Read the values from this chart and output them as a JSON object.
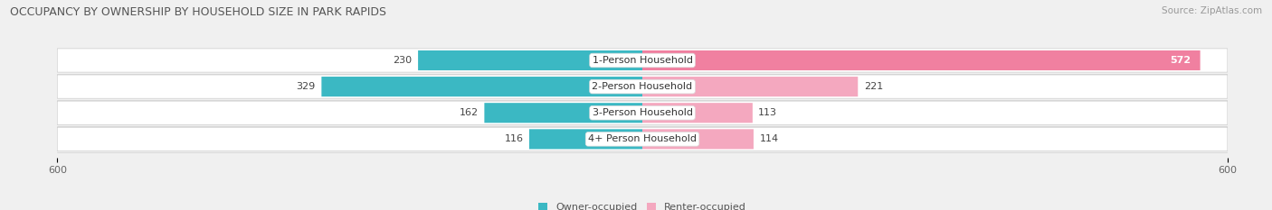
{
  "title": "OCCUPANCY BY OWNERSHIP BY HOUSEHOLD SIZE IN PARK RAPIDS",
  "source": "Source: ZipAtlas.com",
  "categories": [
    "1-Person Household",
    "2-Person Household",
    "3-Person Household",
    "4+ Person Household"
  ],
  "owner_values": [
    230,
    329,
    162,
    116
  ],
  "renter_values": [
    572,
    221,
    113,
    114
  ],
  "owner_color": "#3BB8C3",
  "renter_color": "#F080A0",
  "renter_color_light": "#F4A8BF",
  "row_bg_color": "#e8e8e8",
  "fig_bg_color": "#f0f0f0",
  "xlim": 600,
  "legend_owner": "Owner-occupied",
  "legend_renter": "Renter-occupied",
  "title_fontsize": 9,
  "source_fontsize": 7.5,
  "label_fontsize": 8,
  "bar_label_fontsize": 8,
  "value_label_white_threshold": 500
}
